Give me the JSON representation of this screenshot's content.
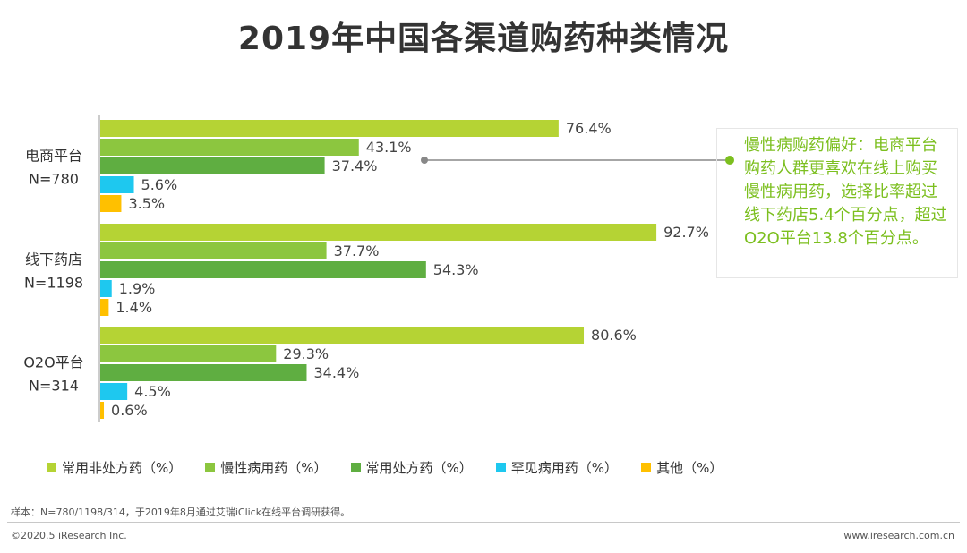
{
  "title": "2019年中国各渠道购药种类情况",
  "chart_data": {
    "type": "bar",
    "orientation": "horizontal",
    "categories": [
      {
        "name": "电商平台",
        "n": "N=780"
      },
      {
        "name": "线下药店",
        "n": "N=1198"
      },
      {
        "name": "O2O平台",
        "n": "N=314"
      }
    ],
    "series": [
      {
        "name": "常用非处方药（%）",
        "color": "#b5d334",
        "values": [
          76.4,
          92.7,
          80.6
        ]
      },
      {
        "name": "慢性病用药（%）",
        "color": "#8cc63f",
        "values": [
          43.1,
          37.7,
          29.3
        ]
      },
      {
        "name": "常用处方药（%）",
        "color": "#5fae41",
        "values": [
          37.4,
          54.3,
          34.4
        ]
      },
      {
        "name": "罕见病用药（%）",
        "color": "#1ec8ef",
        "values": [
          5.6,
          1.9,
          4.5
        ]
      },
      {
        "name": "其他（%）",
        "color": "#ffc000",
        "values": [
          3.5,
          1.4,
          0.6
        ]
      }
    ],
    "value_suffix": "%",
    "xlim": [
      0,
      100
    ],
    "legend_position": "bottom"
  },
  "callout": {
    "text": "慢性病购药偏好：电商平台购药人群更喜欢在线上购买慢性病用药，选择比率超过线下药店5.4个百分点，超过O2O平台13.8个百分点。",
    "color": "#7cbf1f"
  },
  "note": "样本：N=780/1198/314，于2019年8月通过艾瑞iClick在线平台调研获得。",
  "footer": {
    "copyright": "©2020.5 iResearch Inc.",
    "site": "www.iresearch.com.cn"
  }
}
